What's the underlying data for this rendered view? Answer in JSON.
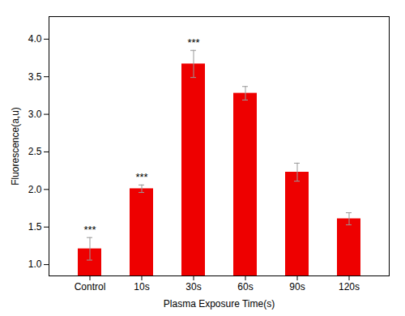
{
  "chart_data": {
    "type": "bar",
    "categories": [
      "Control",
      "10s",
      "30s",
      "60s",
      "90s",
      "120s"
    ],
    "values": [
      1.21,
      2.01,
      3.67,
      3.28,
      2.23,
      1.61
    ],
    "errors": [
      0.15,
      0.05,
      0.18,
      0.09,
      0.12,
      0.08
    ],
    "color": "#EE0000",
    "annotations": [
      "***",
      "***",
      "***",
      null,
      null,
      null
    ],
    "xlabel": "Plasma Exposure Time(s)",
    "ylabel": "Fluorescence(a,u)",
    "ylim": [
      0.85,
      4.3
    ],
    "yticks": [
      {
        "value": 1.0,
        "label": "1.0"
      },
      1.5,
      {
        "value": 2.0,
        "label": "2.0"
      },
      2.5,
      {
        "value": 3.0,
        "label": "3.0"
      },
      3.5,
      {
        "value": 4.0,
        "label": "4.0"
      }
    ],
    "grid": false
  }
}
